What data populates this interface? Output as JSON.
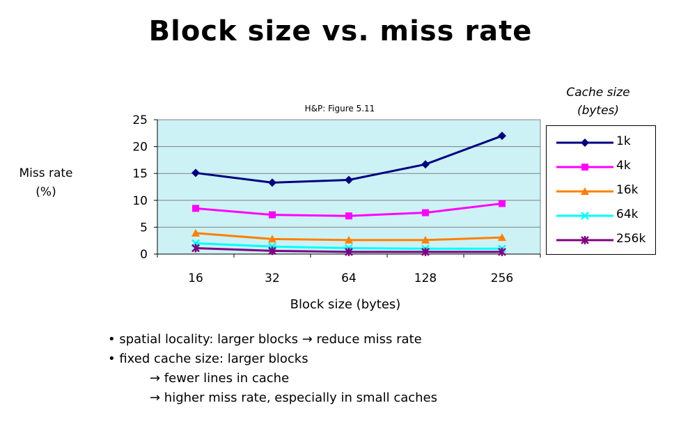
{
  "slide": {
    "title": "Block size vs. miss rate"
  },
  "chart_data": {
    "type": "line",
    "title": "H&P: Figure 5.11",
    "xlabel": "Block size (bytes)",
    "ylabel_line1": "Miss rate",
    "ylabel_line2": "(%)",
    "categories": [
      "16",
      "32",
      "64",
      "128",
      "256"
    ],
    "yticks": [
      "0",
      "5",
      "10",
      "15",
      "20",
      "25"
    ],
    "ylim": [
      0,
      25
    ],
    "plot_background": "#ccf2f5",
    "grid": "horizontal",
    "legend_title_line1": "Cache size",
    "legend_title_line2": "(bytes)",
    "legend_position": "right",
    "series": [
      {
        "name": "1k",
        "values": [
          15.1,
          13.3,
          13.8,
          16.7,
          22.0
        ],
        "color": "#000080",
        "marker": "diamond"
      },
      {
        "name": "4k",
        "values": [
          8.5,
          7.3,
          7.1,
          7.7,
          9.4
        ],
        "color": "#ff00ff",
        "marker": "square"
      },
      {
        "name": "16k",
        "values": [
          3.9,
          2.8,
          2.6,
          2.6,
          3.1
        ],
        "color": "#ff8000",
        "marker": "triangle"
      },
      {
        "name": "64k",
        "values": [
          2.0,
          1.4,
          1.1,
          1.0,
          1.0
        ],
        "color": "#00ffff",
        "marker": "x"
      },
      {
        "name": "256k",
        "values": [
          1.1,
          0.6,
          0.4,
          0.4,
          0.4
        ],
        "color": "#800080",
        "marker": "star"
      }
    ]
  },
  "bullets": [
    {
      "text": "• spatial locality: larger blocks → reduce miss rate",
      "indent": false
    },
    {
      "text": "• fixed cache size: larger blocks",
      "indent": false
    },
    {
      "text": "→ fewer lines in cache",
      "indent": true
    },
    {
      "text": "→ higher miss rate, especially in small caches",
      "indent": true
    }
  ]
}
